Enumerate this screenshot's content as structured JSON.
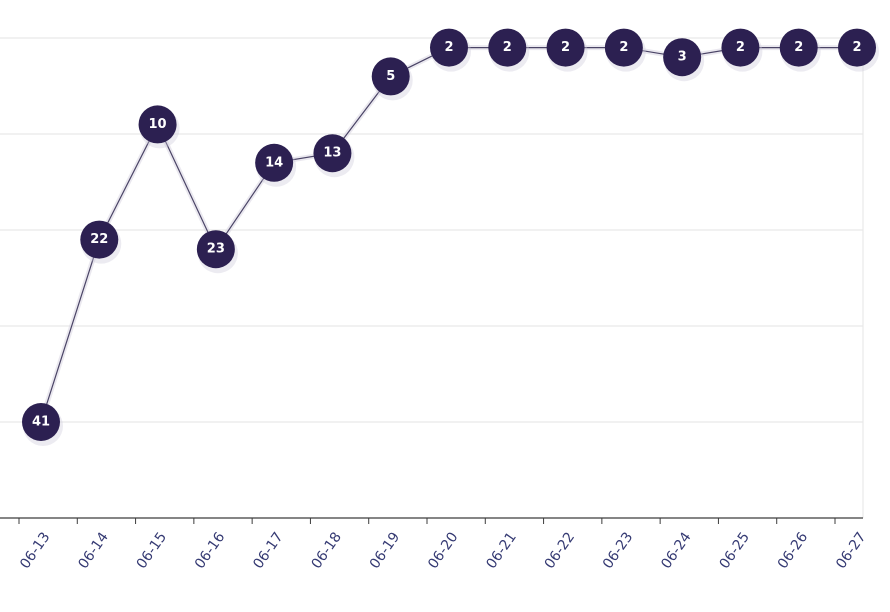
{
  "chart_data": {
    "type": "line",
    "x": [
      "06-13",
      "06-14",
      "06-15",
      "06-16",
      "06-17",
      "06-18",
      "06-19",
      "06-20",
      "06-21",
      "06-22",
      "06-23",
      "06-24",
      "06-25",
      "06-26",
      "06-27"
    ],
    "values": [
      41,
      22,
      10,
      23,
      14,
      13,
      5,
      2,
      2,
      2,
      2,
      3,
      2,
      2,
      2
    ],
    "y_axis": {
      "reversed": true,
      "range": [
        51,
        1
      ]
    },
    "grid": true,
    "legend": "none",
    "colors": {
      "marker": "#2c2051",
      "line": "#4a4466",
      "tick_label": "#353a73",
      "grid": "#e3e3e3",
      "axis": "#3c3c3c",
      "label_text": "#ffffff"
    }
  }
}
